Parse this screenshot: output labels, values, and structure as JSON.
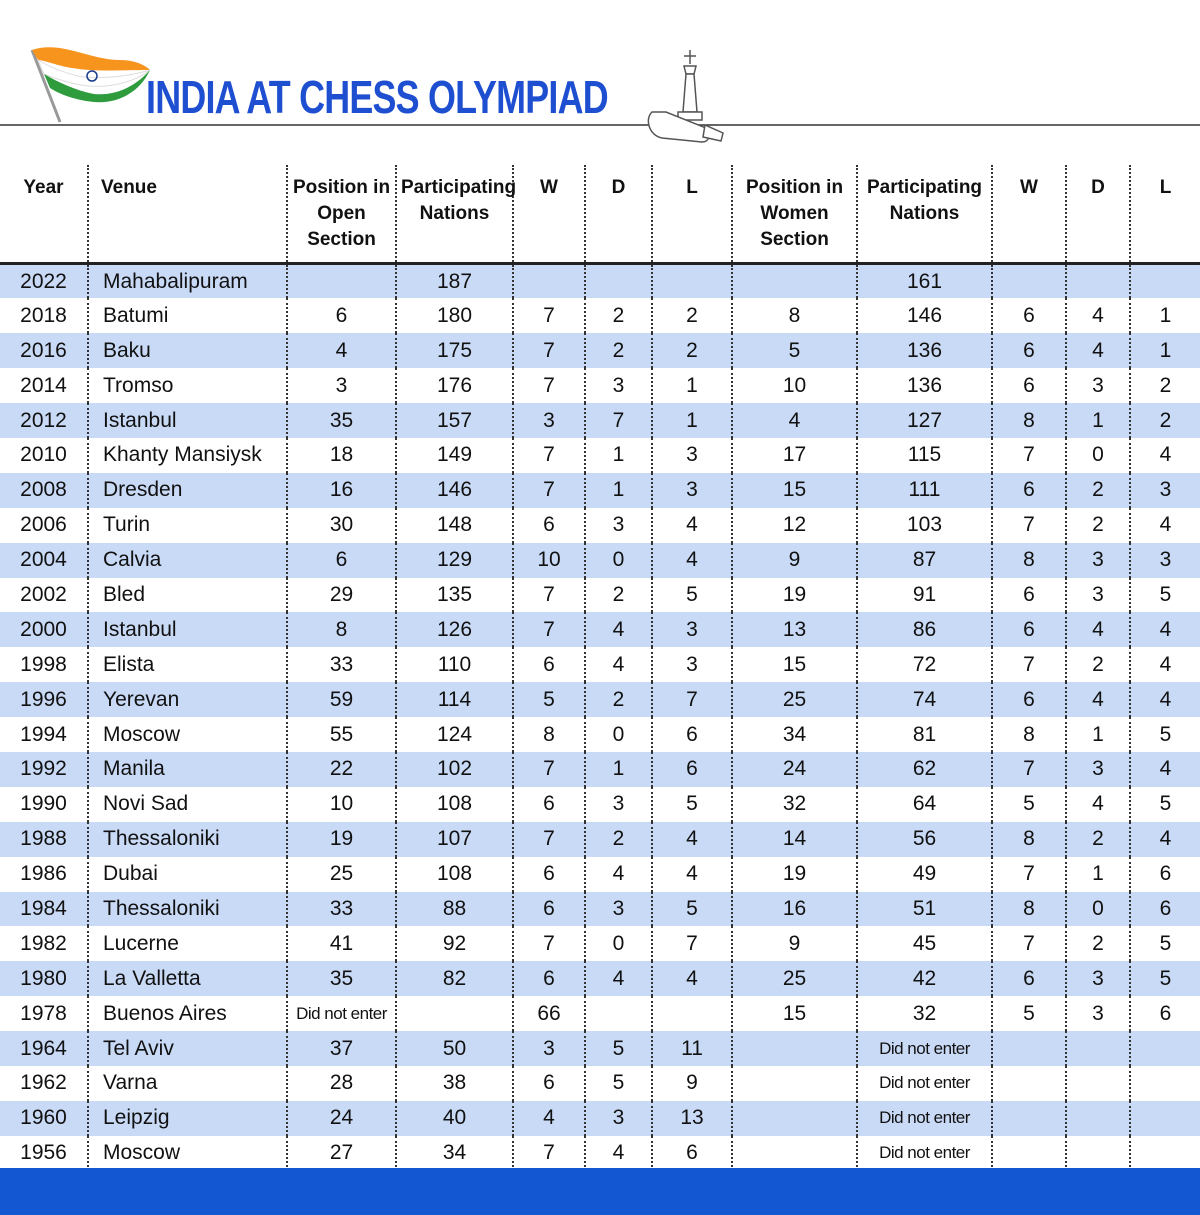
{
  "header": {
    "title": "INDIA AT CHESS OLYMPIAD"
  },
  "table": {
    "columns": [
      "Year",
      "Venue",
      "Position in Open Section",
      "Participating Nations",
      "W",
      "D",
      "L",
      "Position in Women Section",
      "Participating Nations",
      "W",
      "D",
      "L"
    ],
    "rows": [
      [
        2022,
        "Mahabalipuram",
        null,
        187,
        null,
        null,
        null,
        null,
        161,
        null,
        null,
        null
      ],
      [
        2018,
        "Batumi",
        6,
        180,
        7,
        2,
        2,
        8,
        146,
        6,
        4,
        1
      ],
      [
        2016,
        "Baku",
        4,
        175,
        7,
        2,
        2,
        5,
        136,
        6,
        4,
        1
      ],
      [
        2014,
        "Tromso",
        3,
        176,
        7,
        3,
        1,
        10,
        136,
        6,
        3,
        2
      ],
      [
        2012,
        "Istanbul",
        35,
        157,
        3,
        7,
        1,
        4,
        127,
        8,
        1,
        2
      ],
      [
        2010,
        "Khanty Mansiysk",
        18,
        149,
        7,
        1,
        3,
        17,
        115,
        7,
        0,
        4
      ],
      [
        2008,
        "Dresden",
        16,
        146,
        7,
        1,
        3,
        15,
        111,
        6,
        2,
        3
      ],
      [
        2006,
        "Turin",
        30,
        148,
        6,
        3,
        4,
        12,
        103,
        7,
        2,
        4
      ],
      [
        2004,
        "Calvia",
        6,
        129,
        10,
        0,
        4,
        9,
        87,
        8,
        3,
        3
      ],
      [
        2002,
        "Bled",
        29,
        135,
        7,
        2,
        5,
        19,
        91,
        6,
        3,
        5
      ],
      [
        2000,
        "Istanbul",
        8,
        126,
        7,
        4,
        3,
        13,
        86,
        6,
        4,
        4
      ],
      [
        1998,
        "Elista",
        33,
        110,
        6,
        4,
        3,
        15,
        72,
        7,
        2,
        4
      ],
      [
        1996,
        "Yerevan",
        59,
        114,
        5,
        2,
        7,
        25,
        74,
        6,
        4,
        4
      ],
      [
        1994,
        "Moscow",
        55,
        124,
        8,
        0,
        6,
        34,
        81,
        8,
        1,
        5
      ],
      [
        1992,
        "Manila",
        22,
        102,
        7,
        1,
        6,
        24,
        62,
        7,
        3,
        4
      ],
      [
        1990,
        "Novi Sad",
        10,
        108,
        6,
        3,
        5,
        32,
        64,
        5,
        4,
        5
      ],
      [
        1988,
        "Thessaloniki",
        19,
        107,
        7,
        2,
        4,
        14,
        56,
        8,
        2,
        4
      ],
      [
        1986,
        "Dubai",
        25,
        108,
        6,
        4,
        4,
        19,
        49,
        7,
        1,
        6
      ],
      [
        1984,
        "Thessaloniki",
        33,
        88,
        6,
        3,
        5,
        16,
        51,
        8,
        0,
        6
      ],
      [
        1982,
        "Lucerne",
        41,
        92,
        7,
        0,
        7,
        9,
        45,
        7,
        2,
        5
      ],
      [
        1980,
        "La Valletta",
        35,
        82,
        6,
        4,
        4,
        25,
        42,
        6,
        3,
        5
      ],
      [
        1978,
        "Buenos Aires",
        "Did not enter",
        null,
        66,
        null,
        null,
        15,
        32,
        5,
        3,
        6
      ],
      [
        1964,
        "Tel Aviv",
        37,
        50,
        3,
        5,
        11,
        null,
        "Did not enter",
        null,
        null,
        null
      ],
      [
        1962,
        "Varna",
        28,
        38,
        6,
        5,
        9,
        null,
        "Did not enter",
        null,
        null,
        null
      ],
      [
        1960,
        "Leipzig",
        24,
        40,
        4,
        3,
        13,
        null,
        "Did not enter",
        null,
        null,
        null
      ],
      [
        1956,
        "Moscow",
        27,
        34,
        7,
        4,
        6,
        null,
        "Did not enter",
        null,
        null,
        null
      ]
    ]
  }
}
